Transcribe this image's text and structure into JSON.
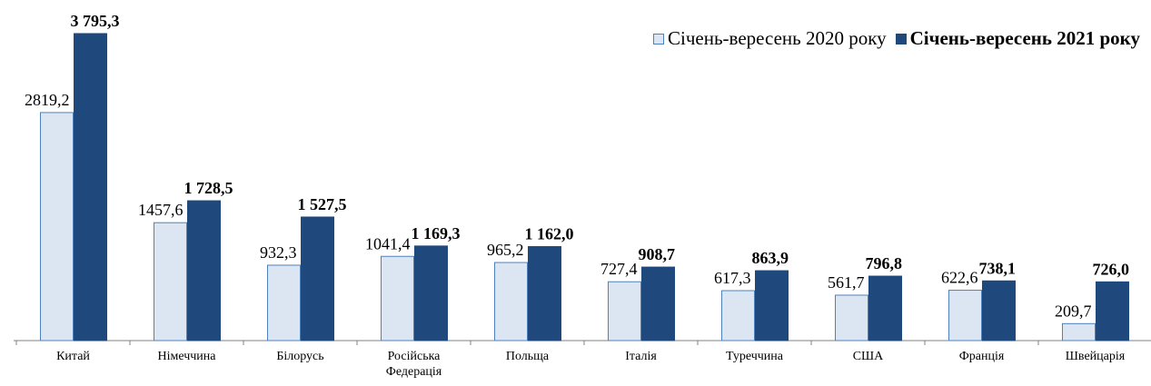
{
  "chart_data": {
    "type": "bar",
    "categories": [
      "Китай",
      "Німеччина",
      "Білорусь",
      "Російська Федерація",
      "Польща",
      "Італія",
      "Туреччина",
      "США",
      "Франція",
      "Швейцарія"
    ],
    "series": [
      {
        "name": "Січень-вересень 2020 року",
        "color": "#dce6f2",
        "values": [
          2819.2,
          1457.6,
          932.3,
          1041.4,
          965.2,
          727.4,
          617.3,
          561.7,
          622.6,
          209.7
        ],
        "value_labels": [
          "2819,2",
          "1457,6",
          "932,3",
          "1041,4",
          "965,2",
          "727,4",
          "617,3",
          "561,7",
          "622,6",
          "209,7"
        ]
      },
      {
        "name": "Січень-вересень 2021 року",
        "color": "#1f497d",
        "values": [
          3795.3,
          1728.5,
          1527.5,
          1169.3,
          1162.0,
          908.7,
          863.9,
          796.8,
          738.1,
          726.0
        ],
        "value_labels": [
          "3 795,3",
          "1 728,5",
          "1 527,5",
          "1 169,3",
          "1 162,0",
          "908,7",
          "863,9",
          "796,8",
          "738,1",
          "726,0"
        ]
      }
    ],
    "legend": "top-right"
  }
}
